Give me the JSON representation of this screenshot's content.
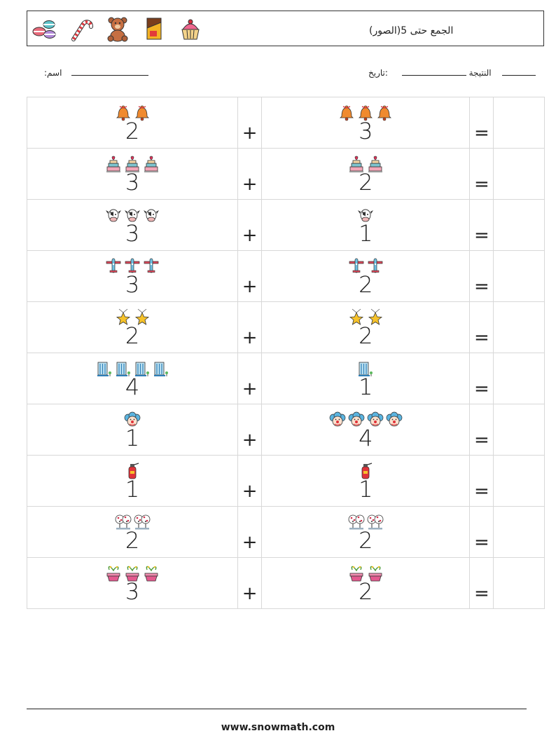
{
  "header": {
    "title": "(الجمع حتى 5(الصور",
    "icons": [
      "macarons-icon",
      "candy-cane-icon",
      "teddy-bear-icon",
      "chocolate-bar-icon",
      "cupcake-icon"
    ]
  },
  "info": {
    "name_label": ":اسم",
    "date_label": ":تاريخ",
    "result_label": "النتيجة"
  },
  "operators": {
    "plus": "+",
    "equals": "="
  },
  "problems": [
    {
      "icon": "bell",
      "a": "2",
      "b": "3"
    },
    {
      "icon": "cake",
      "a": "3",
      "b": "2"
    },
    {
      "icon": "cow",
      "a": "3",
      "b": "1"
    },
    {
      "icon": "plane",
      "a": "3",
      "b": "2"
    },
    {
      "icon": "star",
      "a": "2",
      "b": "2"
    },
    {
      "icon": "building",
      "a": "4",
      "b": "1"
    },
    {
      "icon": "clown",
      "a": "1",
      "b": "4"
    },
    {
      "icon": "extinguisher",
      "a": "1",
      "b": "1"
    },
    {
      "icon": "tree",
      "a": "2",
      "b": "2"
    },
    {
      "icon": "plant",
      "a": "3",
      "b": "2"
    }
  ],
  "footer": {
    "url": "www.snowmath.com"
  }
}
